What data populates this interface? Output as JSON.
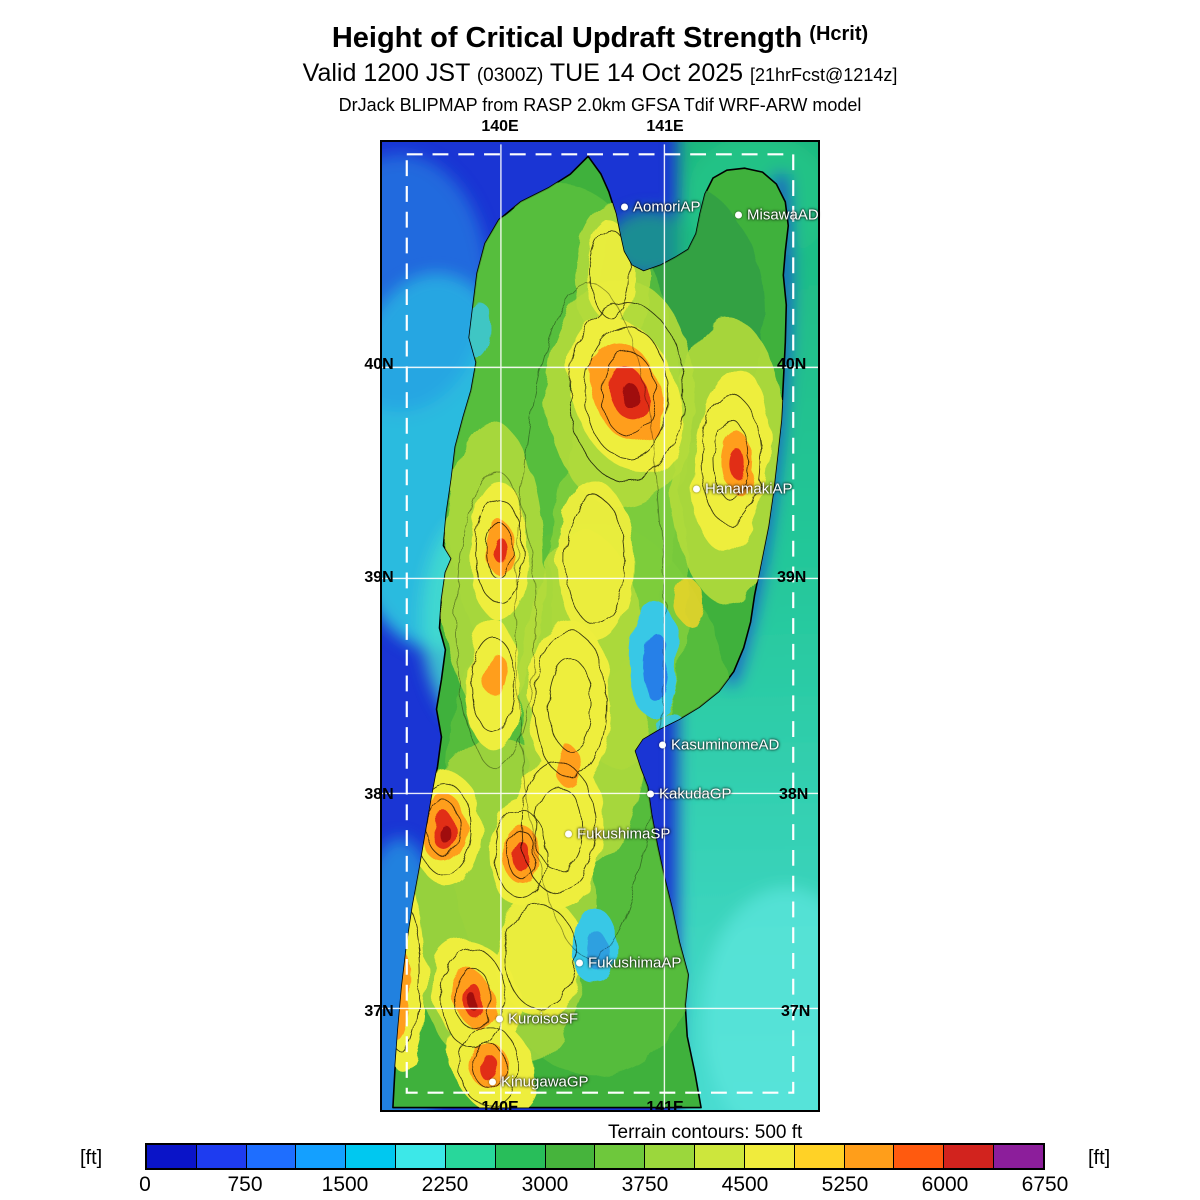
{
  "header": {
    "title_main": "Height of Critical Updraft Strength",
    "title_paren": "(Hcrit)",
    "valid_prefix": "Valid 1200 JST",
    "valid_zulu": "(0300Z)",
    "valid_date": "TUE 14 Oct 2025",
    "valid_fcst": "[21hrFcst@1214z]",
    "model_line": "DrJack BLIPMAP from RASP 2.0km GFSA Tdif WRF-ARW model"
  },
  "map": {
    "lon_top": [
      "140E",
      "141E"
    ],
    "lon_bottom": [
      "140E",
      "141E"
    ],
    "lat_left": [
      "40N",
      "39N",
      "38N",
      "37N"
    ],
    "lat_right": [
      "40N",
      "39N",
      "38N",
      "37N"
    ],
    "stations": [
      {
        "name": "AomoriAP"
      },
      {
        "name": "MisawaAD"
      },
      {
        "name": "HanamakiAP"
      },
      {
        "name": "KasuminomeAD"
      },
      {
        "name": "KakudaGP"
      },
      {
        "name": "FukushimaSP"
      },
      {
        "name": "FukushimaAP"
      },
      {
        "name": "KuroisoSF"
      },
      {
        "name": "KinugawaGP"
      }
    ],
    "terrain_note": "Terrain contours: 500 ft"
  },
  "colorbar": {
    "unit_left": "[ft]",
    "unit_right": "[ft]",
    "min_ft": 0,
    "max_ft": 6750,
    "step_ft": 375,
    "ticks": [
      "0",
      "750",
      "1500",
      "2250",
      "3000",
      "3750",
      "4500",
      "5250",
      "6000",
      "6750"
    ],
    "colors": [
      "#0a14c8",
      "#1e3cf0",
      "#1e6eff",
      "#14a0ff",
      "#00c8f0",
      "#3ce8e8",
      "#28d79b",
      "#28be5a",
      "#46b43c",
      "#6ec83c",
      "#9bd73c",
      "#cde63c",
      "#f0eb3c",
      "#ffd226",
      "#ff9e1a",
      "#ff5a0f",
      "#d2231e",
      "#8c1e9b"
    ]
  }
}
